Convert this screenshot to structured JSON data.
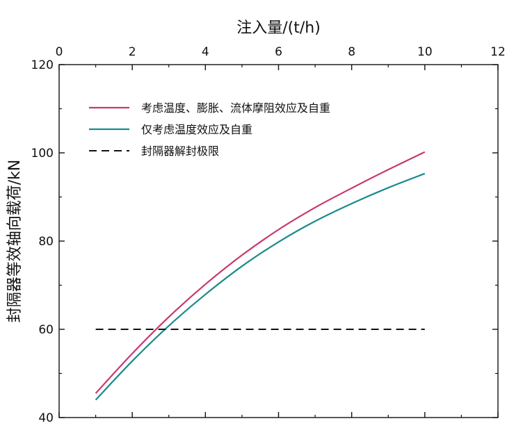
{
  "chart_data": {
    "type": "line",
    "title": "",
    "xlabel": "注入量/(t/h)",
    "ylabel": "封隔器等效轴向载荷/kN",
    "xlim": [
      0,
      12
    ],
    "ylim": [
      40,
      120
    ],
    "x_ticks": [
      0,
      2,
      4,
      6,
      8,
      10,
      12
    ],
    "y_ticks": [
      40,
      60,
      80,
      100,
      120
    ],
    "x_axis_position": "top",
    "grid": false,
    "legend_position": "top-left",
    "series": [
      {
        "name": "考虑温度、膨胀、流体摩阻效应及自重",
        "color": "#c8386f",
        "style": "solid",
        "x": [
          1,
          2,
          3,
          4,
          5,
          6,
          7,
          8,
          9,
          10
        ],
        "y": [
          45.5,
          54.5,
          62.8,
          70.2,
          76.8,
          82.6,
          87.6,
          92.0,
          96.2,
          100.2
        ]
      },
      {
        "name": "仅考虑温度效应及自重",
        "color": "#1a8a8a",
        "style": "solid",
        "x": [
          1,
          2,
          3,
          4,
          5,
          6,
          7,
          8,
          9,
          10
        ],
        "y": [
          44.0,
          52.8,
          60.8,
          67.9,
          74.3,
          79.8,
          84.5,
          88.5,
          92.1,
          95.3
        ]
      },
      {
        "name": "封隔器解封极限",
        "color": "#111111",
        "style": "dashed",
        "x": [
          1,
          10
        ],
        "y": [
          60,
          60
        ]
      }
    ]
  }
}
